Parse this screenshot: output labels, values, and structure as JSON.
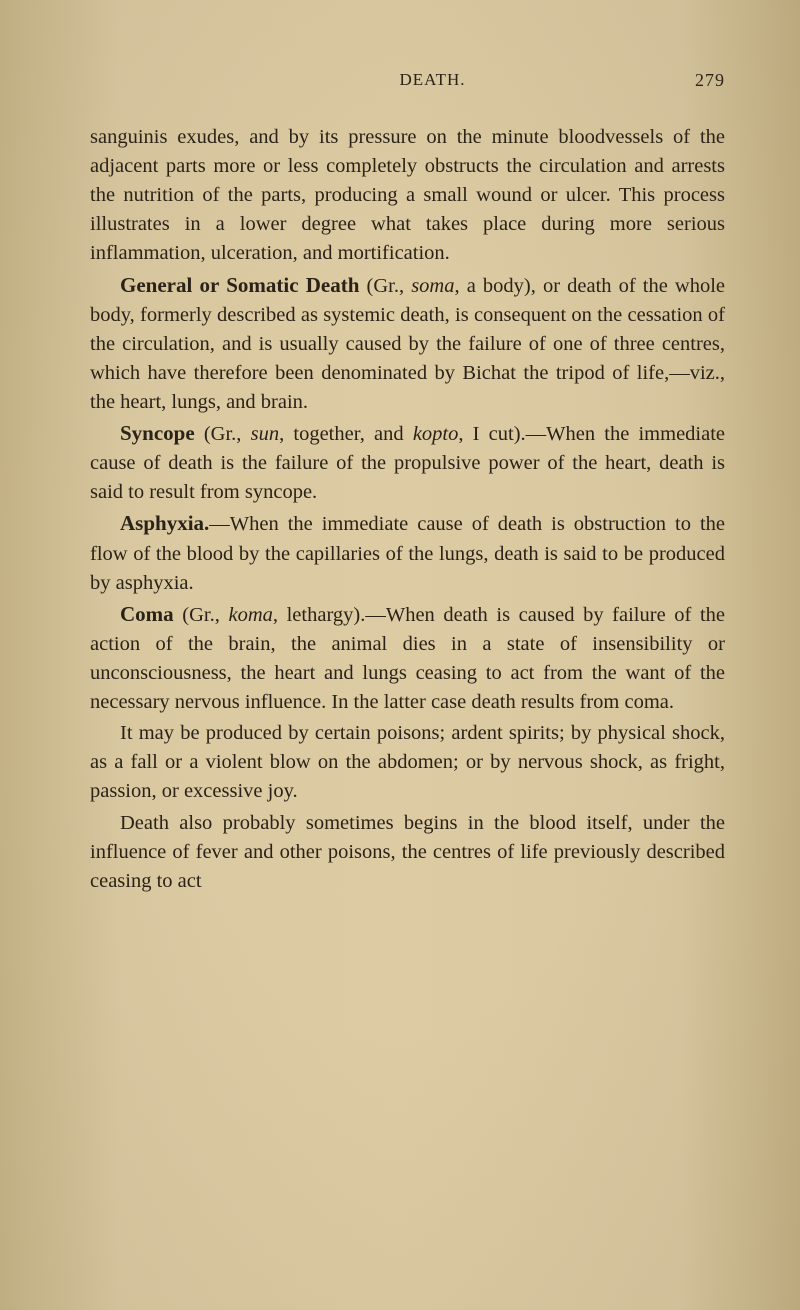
{
  "header": {
    "title": "DEATH.",
    "page_number": "279"
  },
  "paragraphs": {
    "p1": "sanguinis exudes, and by its pressure on the minute bloodvessels of the adjacent parts more or less completely obstructs the circulation and arrests the nutrition of the parts, producing a small wound or ulcer. This process illustrates in a lower degree what takes place during more serious inflammation, ulceration, and mortification.",
    "p2_term": "General or Somatic Death",
    "p2_etym": " (Gr., ",
    "p2_italic1": "soma",
    "p2_rest": ", a body), or death of the whole body, formerly described as systemic death, is consequent on the cessation of the circulation, and is usually caused by the failure of one of three centres, which have therefore been denominated by Bichat the tripod of life,—viz., the heart, lungs, and brain.",
    "p3_term": "Syncope",
    "p3_etym": " (Gr., ",
    "p3_italic1": "sun",
    "p3_mid1": ", together, and ",
    "p3_italic2": "kopto",
    "p3_rest": ", I cut).—When the immediate cause of death is the failure of the propulsive power of the heart, death is said to result from syncope.",
    "p4_term": "Asphyxia.",
    "p4_rest": "—When the immediate cause of death is obstruction to the flow of the blood by the capillaries of the lungs, death is said to be produced by asphyxia.",
    "p5_term": "Coma",
    "p5_etym": " (Gr., ",
    "p5_italic1": "koma",
    "p5_rest": ", lethargy).—When death is caused by failure of the action of the brain, the animal dies in a state of insensibility or unconsciousness, the heart and lungs ceasing to act from the want of the necessary nervous influence. In the latter case death results from coma.",
    "p6": "It may be produced by certain poisons; ardent spirits; by physical shock, as a fall or a violent blow on the abdomen; or by nervous shock, as fright, passion, or excessive joy.",
    "p7": "Death also probably sometimes begins in the blood itself, under the influence of fever and other poisons, the centres of life previously described ceasing to act"
  },
  "colors": {
    "text": "#2a2218",
    "background": "#d9c8a0"
  },
  "typography": {
    "body_fontsize": 20.5,
    "term_fontsize": 21,
    "header_fontsize": 17,
    "line_height": 1.42
  }
}
